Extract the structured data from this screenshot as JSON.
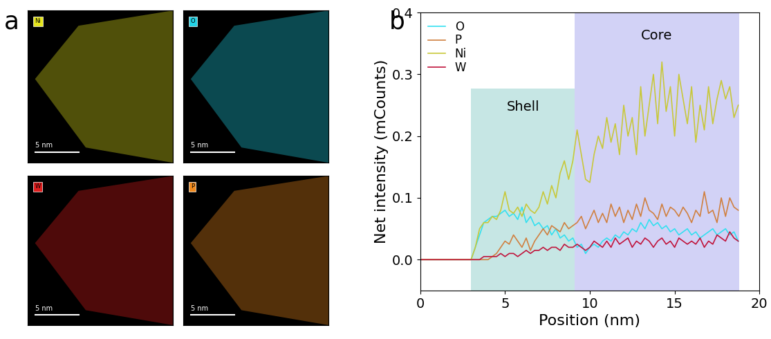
{
  "panel_a": {
    "label": "a",
    "scale_bar": "5 nm",
    "maps": [
      {
        "element": "Ni",
        "color": "#e6e61e"
      },
      {
        "element": "O",
        "color": "#22d3e6"
      },
      {
        "element": "W",
        "color": "#e01e1e"
      },
      {
        "element": "P",
        "color": "#f08a1e"
      }
    ]
  },
  "chart_data": {
    "type": "line",
    "label": "b",
    "xlabel": "Position (nm)",
    "ylabel": "Net intensity (mCounts)",
    "xlim": [
      0,
      20
    ],
    "xticks": [
      0,
      5,
      10,
      15,
      20
    ],
    "ylim": [
      -0.05,
      0.4
    ],
    "yticks": [
      {
        "value": 0.0,
        "label": "0.0"
      },
      {
        "value": 0.1,
        "label": "0.1"
      },
      {
        "value": 0.2,
        "label": "0.2"
      },
      {
        "value": 0.3,
        "label": "0.3"
      },
      {
        "value": 0.4,
        "label": "0.4"
      }
    ],
    "legend": "upper left",
    "regions": [
      {
        "label": "Shell",
        "xlim": [
          3.0,
          9.1
        ],
        "top": 0.277,
        "color": "#b3dedb"
      },
      {
        "label": "Core",
        "xlim": [
          9.1,
          18.8
        ],
        "top": 0.4,
        "color": "#c4c4f4"
      }
    ],
    "x": [
      0,
      0.25,
      0.5,
      0.75,
      1,
      1.25,
      1.5,
      1.75,
      2,
      2.25,
      2.5,
      2.75,
      3,
      3.25,
      3.5,
      3.75,
      4,
      4.25,
      4.5,
      4.75,
      5,
      5.25,
      5.5,
      5.75,
      6,
      6.25,
      6.5,
      6.75,
      7,
      7.25,
      7.5,
      7.75,
      8,
      8.25,
      8.5,
      8.75,
      9,
      9.25,
      9.5,
      9.75,
      10,
      10.25,
      10.5,
      10.75,
      11,
      11.25,
      11.5,
      11.75,
      12,
      12.25,
      12.5,
      12.75,
      13,
      13.25,
      13.5,
      13.75,
      14,
      14.25,
      14.5,
      14.75,
      15,
      15.25,
      15.5,
      15.75,
      16,
      16.25,
      16.5,
      16.75,
      17,
      17.25,
      17.5,
      17.75,
      18,
      18.25,
      18.5,
      18.75
    ],
    "series": [
      {
        "name": "O",
        "color": "#33e0f0",
        "values": [
          0,
          0,
          0,
          0,
          0,
          0,
          0,
          0,
          0,
          0,
          0,
          0,
          0,
          0.02,
          0.04,
          0.06,
          0.065,
          0.07,
          0.07,
          0.075,
          0.08,
          0.07,
          0.075,
          0.065,
          0.085,
          0.06,
          0.07,
          0.055,
          0.06,
          0.05,
          0.055,
          0.04,
          0.05,
          0.035,
          0.04,
          0.03,
          0.035,
          0.02,
          0.025,
          0.01,
          0.02,
          0.025,
          0.02,
          0.03,
          0.035,
          0.03,
          0.04,
          0.035,
          0.045,
          0.04,
          0.05,
          0.045,
          0.06,
          0.05,
          0.065,
          0.055,
          0.06,
          0.05,
          0.055,
          0.045,
          0.05,
          0.04,
          0.045,
          0.05,
          0.04,
          0.045,
          0.035,
          0.04,
          0.045,
          0.05,
          0.04,
          0.045,
          0.05,
          0.04,
          0.045,
          0.03
        ]
      },
      {
        "name": "P",
        "color": "#d08040",
        "values": [
          0,
          0,
          0,
          0,
          0,
          0,
          0,
          0,
          0,
          0,
          0,
          0,
          0,
          0,
          0,
          0,
          0,
          0.005,
          0.01,
          0.02,
          0.03,
          0.025,
          0.04,
          0.03,
          0.02,
          0.035,
          0.015,
          0.03,
          0.04,
          0.05,
          0.04,
          0.055,
          0.05,
          0.045,
          0.06,
          0.05,
          0.055,
          0.06,
          0.07,
          0.05,
          0.065,
          0.08,
          0.06,
          0.075,
          0.06,
          0.09,
          0.07,
          0.085,
          0.06,
          0.08,
          0.065,
          0.09,
          0.07,
          0.1,
          0.08,
          0.075,
          0.065,
          0.09,
          0.07,
          0.085,
          0.08,
          0.07,
          0.085,
          0.075,
          0.06,
          0.08,
          0.07,
          0.11,
          0.075,
          0.08,
          0.06,
          0.1,
          0.07,
          0.1,
          0.085,
          0.08
        ]
      },
      {
        "name": "Ni",
        "color": "#c8c83a",
        "values": [
          0,
          0,
          0,
          0,
          0,
          0,
          0,
          0,
          0,
          0,
          0,
          0,
          0,
          0.02,
          0.05,
          0.06,
          0.06,
          0.07,
          0.065,
          0.08,
          0.11,
          0.08,
          0.075,
          0.085,
          0.07,
          0.09,
          0.08,
          0.075,
          0.085,
          0.11,
          0.09,
          0.12,
          0.1,
          0.14,
          0.16,
          0.13,
          0.16,
          0.21,
          0.17,
          0.13,
          0.125,
          0.17,
          0.2,
          0.18,
          0.23,
          0.19,
          0.22,
          0.17,
          0.25,
          0.2,
          0.23,
          0.17,
          0.28,
          0.2,
          0.25,
          0.3,
          0.22,
          0.32,
          0.24,
          0.28,
          0.2,
          0.3,
          0.26,
          0.22,
          0.28,
          0.19,
          0.25,
          0.21,
          0.28,
          0.22,
          0.26,
          0.29,
          0.26,
          0.28,
          0.23,
          0.25
        ]
      },
      {
        "name": "W",
        "color": "#c0143c",
        "values": [
          0,
          0,
          0,
          0,
          0,
          0,
          0,
          0,
          0,
          0,
          0,
          0,
          0,
          0,
          0,
          0.005,
          0.005,
          0.005,
          0.005,
          0.01,
          0.005,
          0.01,
          0.01,
          0.005,
          0.01,
          0.015,
          0.01,
          0.015,
          0.015,
          0.02,
          0.015,
          0.02,
          0.02,
          0.015,
          0.025,
          0.02,
          0.02,
          0.025,
          0.02,
          0.015,
          0.02,
          0.03,
          0.025,
          0.02,
          0.03,
          0.02,
          0.035,
          0.025,
          0.03,
          0.035,
          0.02,
          0.03,
          0.025,
          0.035,
          0.03,
          0.02,
          0.03,
          0.035,
          0.025,
          0.03,
          0.02,
          0.035,
          0.03,
          0.025,
          0.03,
          0.025,
          0.035,
          0.02,
          0.03,
          0.025,
          0.04,
          0.035,
          0.03,
          0.045,
          0.035,
          0.03
        ]
      }
    ]
  }
}
